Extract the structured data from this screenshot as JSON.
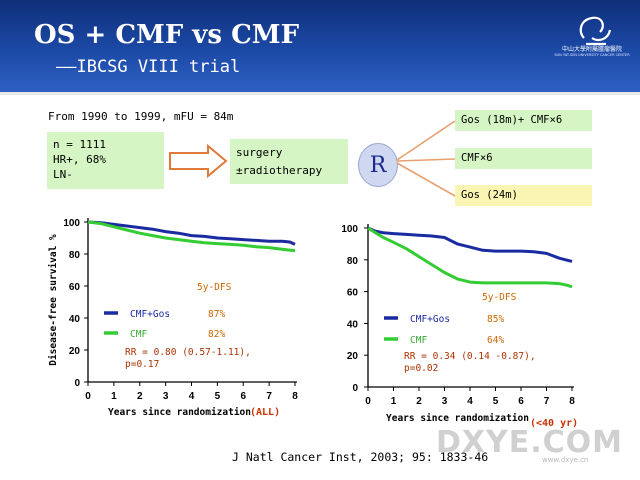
{
  "header": {
    "title": "OS + CMF vs CMF",
    "subtitle": "——IBCSG VIII trial",
    "logo_text": "中山大學附屬腫瘤醫院",
    "logo_subtext": "SUN YAT-SEN UNIVERSITY CANCER CENTER"
  },
  "study": {
    "period": "From 1990 to 1999, mFU = 84m",
    "population": [
      "n = 1111",
      "HR+, 68%",
      "LN-"
    ],
    "treatment": [
      "surgery",
      "±radiotherapy"
    ],
    "randomize_label": "R",
    "arms": [
      "Gos (18m)+ CMF×6",
      "CMF×6",
      "Gos (24m)"
    ]
  },
  "chart_data": [
    {
      "type": "line",
      "title": "",
      "xlabel": "Years since randomization",
      "xlabel_tag": "(ALL)",
      "ylabel": "Disease-free survival %",
      "x_ticks": [
        "0",
        "1",
        "2",
        "3",
        "4",
        "5",
        "6",
        "7",
        "8"
      ],
      "y_ticks": [
        "0",
        "20",
        "40",
        "60",
        "80",
        "100"
      ],
      "xlim": [
        0,
        8
      ],
      "ylim": [
        0,
        100
      ],
      "legend_title": "5y-DFS",
      "series": [
        {
          "name": "CMF+Gos",
          "value_label": "87%",
          "color": "#1a2aa0",
          "x": [
            0,
            0.5,
            1,
            1.5,
            2,
            2.5,
            3,
            3.5,
            4,
            4.5,
            5,
            5.5,
            6,
            6.5,
            7,
            7.5,
            7.8,
            8
          ],
          "y": [
            100,
            99.5,
            98.5,
            97.5,
            96.5,
            95.5,
            94,
            93,
            91.5,
            91,
            90,
            89.5,
            89,
            88.5,
            88,
            88,
            87.5,
            86
          ]
        },
        {
          "name": "CMF",
          "value_label": "82%",
          "color": "#33cc33",
          "x": [
            0,
            0.5,
            1,
            1.5,
            2,
            2.5,
            3,
            3.5,
            4,
            4.5,
            5,
            5.5,
            6,
            6.5,
            7,
            7.5,
            8
          ],
          "y": [
            100,
            99,
            97,
            95,
            93,
            91.5,
            90,
            89,
            88,
            87,
            86.5,
            86,
            85.5,
            84.5,
            84,
            83,
            82
          ]
        }
      ],
      "annotation": [
        "RR = 0.80 (0.57-1.11),",
        "p=0.17"
      ]
    },
    {
      "type": "line",
      "title": "",
      "xlabel": "Years since randomization",
      "xlabel_tag": "(<40 yr)",
      "ylabel": "",
      "x_ticks": [
        "0",
        "1",
        "2",
        "3",
        "4",
        "5",
        "6",
        "7",
        "8"
      ],
      "y_ticks": [
        "0",
        "20",
        "40",
        "60",
        "80",
        "100"
      ],
      "xlim": [
        0,
        8
      ],
      "ylim": [
        0,
        100
      ],
      "legend_title": "5y-DFS",
      "series": [
        {
          "name": "CMF+Gos",
          "value_label": "85%",
          "color": "#1a2aa0",
          "x": [
            0,
            0.3,
            0.6,
            1,
            1.5,
            2,
            2.5,
            3,
            3.5,
            4,
            4.5,
            5,
            5.5,
            6,
            6.5,
            7,
            7.5,
            8
          ],
          "y": [
            100,
            98,
            97,
            96.5,
            96,
            95.5,
            95,
            94,
            90,
            88,
            86,
            85.5,
            85.5,
            85.5,
            85,
            84,
            81,
            79
          ]
        },
        {
          "name": "CMF",
          "value_label": "64%",
          "color": "#33cc33",
          "x": [
            0,
            0.3,
            0.6,
            1,
            1.5,
            2,
            2.5,
            3,
            3.5,
            4,
            4.5,
            5,
            5.5,
            6,
            6.5,
            7,
            7.5,
            7.8,
            8
          ],
          "y": [
            100,
            97,
            94,
            91,
            87,
            82,
            77,
            72,
            68,
            66,
            65.5,
            65.5,
            65.5,
            65.5,
            65.5,
            65.5,
            65,
            64,
            63
          ]
        }
      ],
      "annotation": [
        "RR = 0.34 (0.14 -0.87),",
        "p=0.02"
      ]
    }
  ],
  "footer": {
    "reference": "J Natl Cancer Inst, 2003; 95: 1833-46",
    "watermark": "DXYE.COM",
    "watermark_url": "www.dxye.cn"
  }
}
